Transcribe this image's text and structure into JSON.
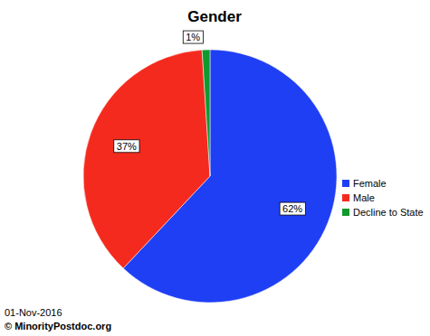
{
  "chart_data": {
    "type": "pie",
    "title": "Gender",
    "categories": [
      "Female",
      "Male",
      "Decline to State"
    ],
    "values": [
      62,
      37,
      1
    ],
    "value_labels": [
      "62%",
      "37%",
      "1%"
    ],
    "colors": [
      "#1f3ff5",
      "#f52a1e",
      "#109a2c"
    ],
    "data_labels": true,
    "legend": "right",
    "annotations": [
      "01-Nov-2016",
      "© MinorityPostdoc.org"
    ]
  }
}
